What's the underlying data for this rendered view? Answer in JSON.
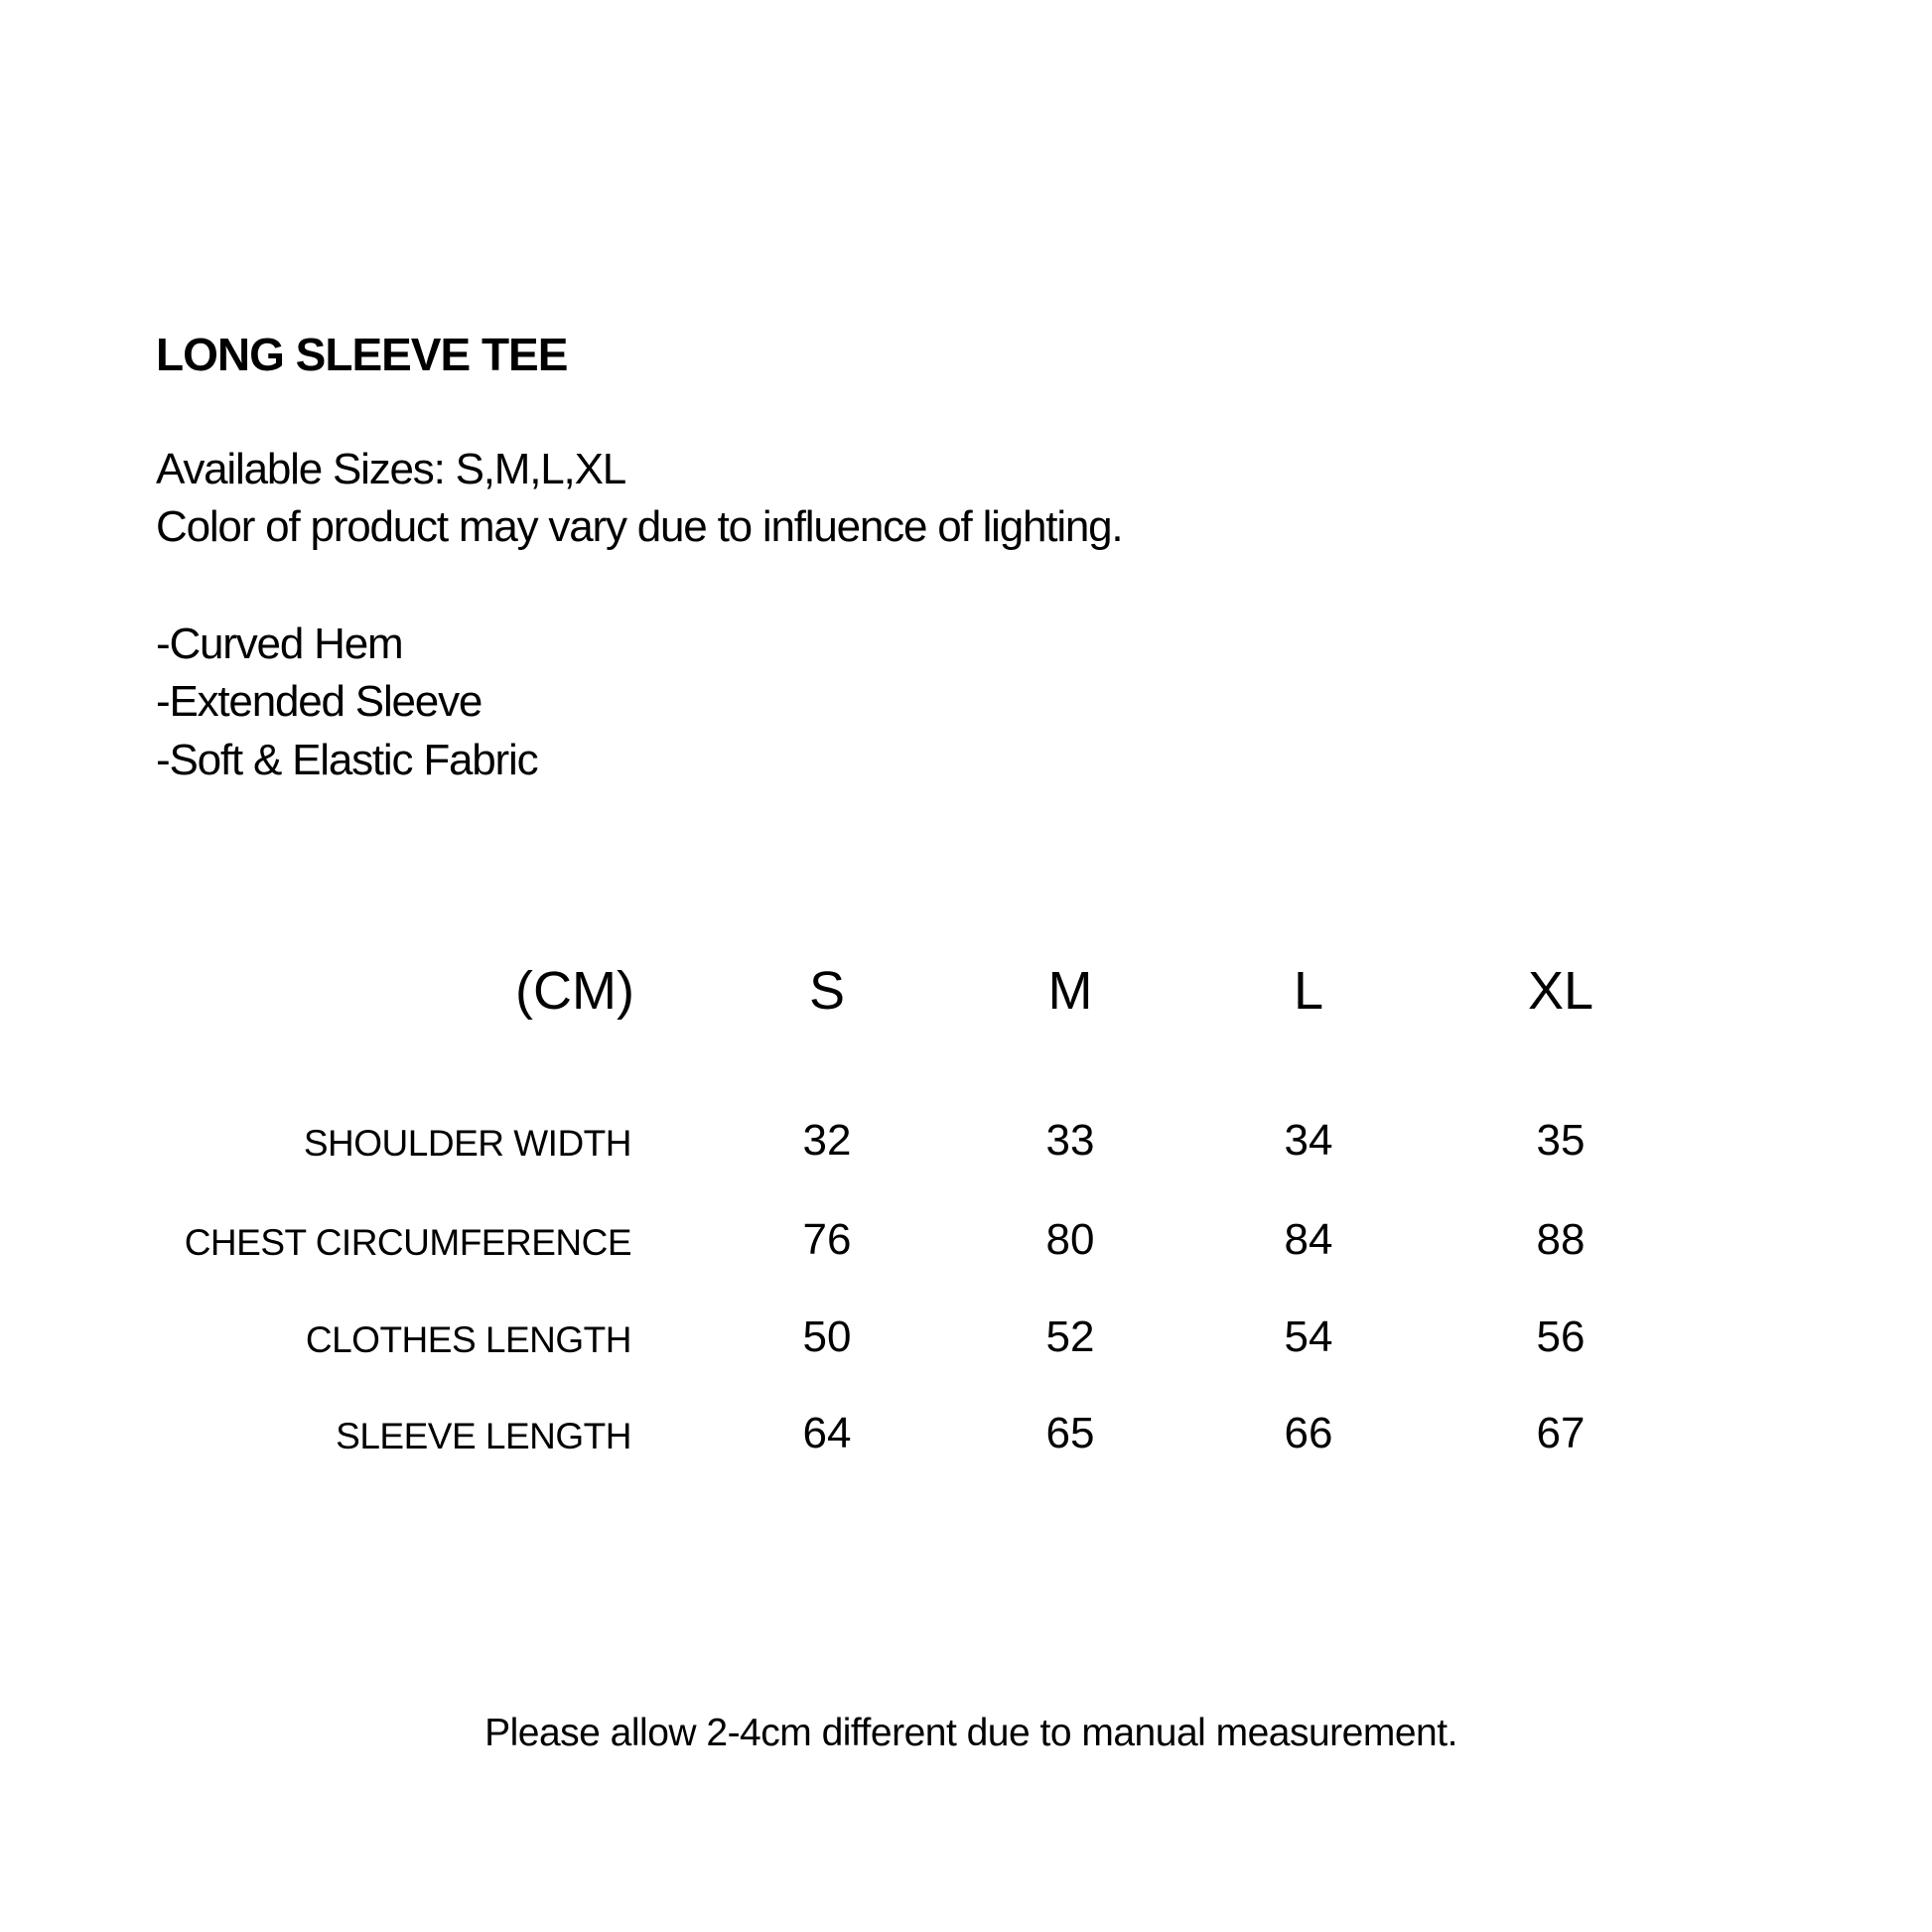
{
  "title": "LONG SLEEVE TEE",
  "info": [
    "Available Sizes: S,M,L,XL",
    "Color of product may vary due to influence of lighting."
  ],
  "features": [
    "-Curved Hem",
    "-Extended Sleeve",
    "-Soft & Elastic Fabric"
  ],
  "table": {
    "unit": "(CM)",
    "sizes": [
      "S",
      "M",
      "L",
      "XL"
    ],
    "rows": [
      {
        "label": "SHOULDER  WIDTH",
        "values": [
          "32",
          "33",
          "34",
          "35"
        ]
      },
      {
        "label": "CHEST CIRCUMFERENCE",
        "values": [
          "76",
          "80",
          "84",
          "88"
        ]
      },
      {
        "label": "CLOTHES LENGTH",
        "values": [
          "50",
          "52",
          "54",
          "56"
        ]
      },
      {
        "label": "SLEEVE LENGTH",
        "values": [
          "64",
          "65",
          "66",
          "67"
        ]
      }
    ]
  },
  "footer": "Please allow 2-4cm different due to manual measurement."
}
